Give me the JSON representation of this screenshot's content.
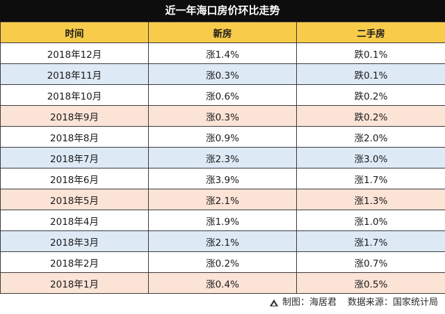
{
  "title": "近一年海口房价环比走势",
  "headers": [
    "时间",
    "新房",
    "二手房"
  ],
  "rows": [
    {
      "month": "2018年12月",
      "new": "涨1.4%",
      "second": "跌0.1%",
      "shade": "white"
    },
    {
      "month": "2018年11月",
      "new": "涨0.3%",
      "second": "跌0.1%",
      "shade": "blue"
    },
    {
      "month": "2018年10月",
      "new": "涨0.6%",
      "second": "跌0.2%",
      "shade": "white"
    },
    {
      "month": "2018年9月",
      "new": "涨0.3%",
      "second": "跌0.2%",
      "shade": "pink"
    },
    {
      "month": "2018年8月",
      "new": "涨0.9%",
      "second": "涨2.0%",
      "shade": "white"
    },
    {
      "month": "2018年7月",
      "new": "涨2.3%",
      "second": "涨3.0%",
      "shade": "blue"
    },
    {
      "month": "2018年6月",
      "new": "涨3.9%",
      "second": "涨1.7%",
      "shade": "white"
    },
    {
      "month": "2018年5月",
      "new": "涨2.1%",
      "second": "涨1.3%",
      "shade": "pink"
    },
    {
      "month": "2018年4月",
      "new": "涨1.9%",
      "second": "涨1.0%",
      "shade": "white"
    },
    {
      "month": "2018年3月",
      "new": "涨2.1%",
      "second": "涨1.7%",
      "shade": "blue"
    },
    {
      "month": "2018年2月",
      "new": "涨0.2%",
      "second": "涨0.7%",
      "shade": "white"
    },
    {
      "month": "2018年1月",
      "new": "涨0.4%",
      "second": "涨0.5%",
      "shade": "pink"
    }
  ],
  "footer": {
    "icon": "triangle-logo-icon",
    "credit": "制图：海居君",
    "source": "数据来源：国家统计局"
  },
  "colors": {
    "title_bg": "#0d0d0d",
    "header_bg": "#f8cb4a",
    "row_white": "#ffffff",
    "row_blue": "#dde9f5",
    "row_pink": "#fbe3d6"
  }
}
